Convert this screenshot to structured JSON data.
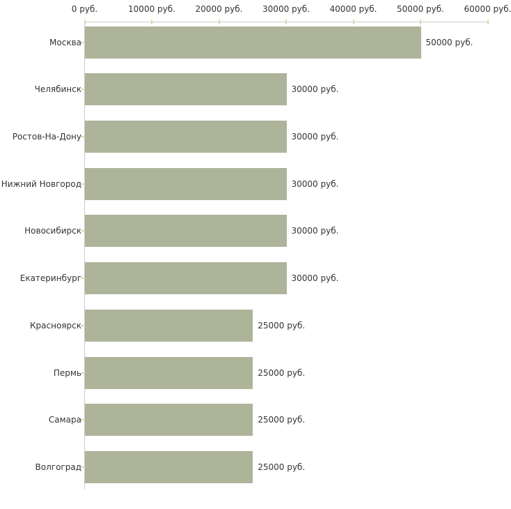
{
  "chart_data": {
    "type": "bar",
    "orientation": "horizontal",
    "title": "",
    "xlabel": "",
    "ylabel": "",
    "unit": "руб.",
    "xlim": [
      0,
      60000
    ],
    "grid": false,
    "legend": null,
    "x_tick_values": [
      0,
      10000,
      20000,
      30000,
      40000,
      50000,
      60000
    ],
    "x_tick_labels": [
      "0 руб.",
      "10000 руб.",
      "20000 руб.",
      "30000 руб.",
      "40000 руб.",
      "50000 руб.",
      "60000 руб."
    ],
    "categories": [
      "Москва",
      "Челябинск",
      "Ростов-На-Дону",
      "Нижний Новгород",
      "Новосибирск",
      "Екатеринбург",
      "Красноярск",
      "Пермь",
      "Самара",
      "Волгоград"
    ],
    "values": [
      50000,
      30000,
      30000,
      30000,
      30000,
      30000,
      25000,
      25000,
      25000,
      25000
    ],
    "bar_labels": [
      "50000 руб.",
      "30000 руб.",
      "30000 руб.",
      "30000 руб.",
      "30000 руб.",
      "30000 руб.",
      "25000 руб.",
      "25000 руб.",
      "25000 руб.",
      "25000 руб."
    ],
    "colors": {
      "bar": "#adb49a",
      "axis": "#c9c9c9",
      "tick": "#d9dab2",
      "text": "#333333",
      "background": "#ffffff"
    }
  }
}
